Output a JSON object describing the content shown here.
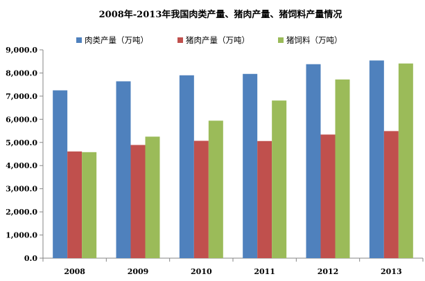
{
  "chart_data": {
    "type": "bar",
    "title": "2008年-2013年我国肉类产量、猪肉产量、猪饲料产量情况",
    "categories": [
      "2008",
      "2009",
      "2010",
      "2011",
      "2012",
      "2013"
    ],
    "series": [
      {
        "name": "肉类产量（万吨）",
        "color": "#4F81BD",
        "values": [
          7250,
          7640,
          7900,
          7960,
          8380,
          8540
        ]
      },
      {
        "name": "猪肉产量（万吨）",
        "color": "#C0504D",
        "values": [
          4610,
          4890,
          5070,
          5060,
          5340,
          5490
        ]
      },
      {
        "name": "猪饲料（万吨）",
        "color": "#9BBB59",
        "values": [
          4580,
          5250,
          5940,
          6810,
          7720,
          8410
        ]
      }
    ],
    "yticks": [
      "0.0",
      "1,000.0",
      "2,000.0",
      "3,000.0",
      "4,000.0",
      "5,000.0",
      "6,000.0",
      "7,000.0",
      "8,000.0",
      "9,000.0"
    ],
    "ylim": [
      0,
      9000
    ],
    "grid": false,
    "legend": "top"
  }
}
